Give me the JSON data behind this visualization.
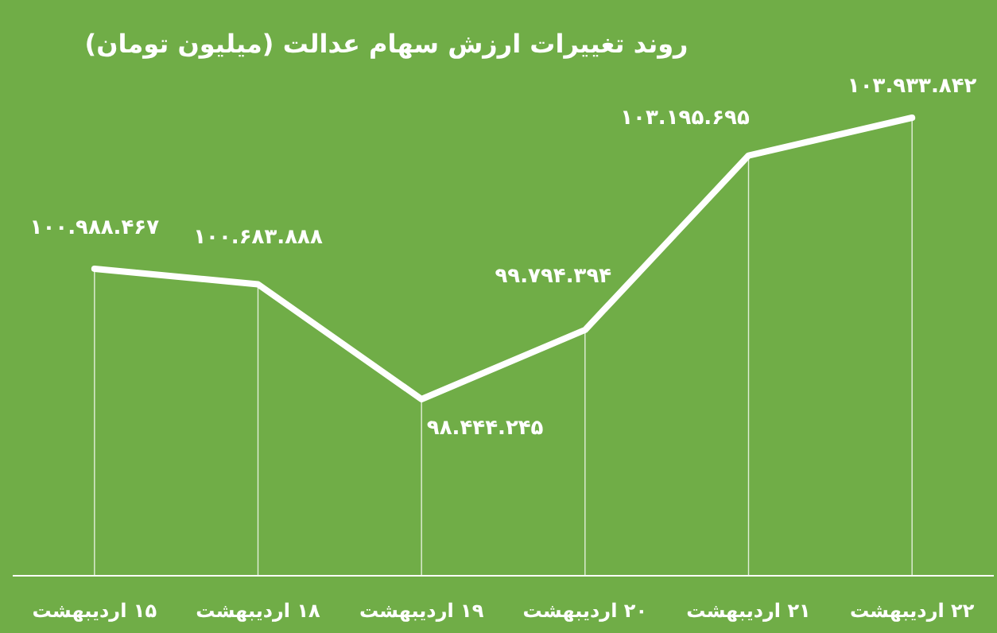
{
  "chart_data": {
    "type": "line",
    "title": "روند تغییرات ارزش سهام عدالت (میلیون تومان)",
    "categories": [
      "۱۵ اردیبهشت",
      "۱۸ اردیبهشت",
      "۱۹ اردیبهشت",
      "۲۰ اردیبهشت",
      "۲۱ اردیبهشت",
      "۲۲ اردیبهشت"
    ],
    "series": [
      {
        "color": "#ffffff",
        "values": [
          100988467,
          100683888,
          98444245,
          99794394,
          103195695,
          103933842
        ],
        "value_labels": [
          "۱۰۰.۹۸۸.۴۶۷",
          "۱۰۰.۶۸۳.۸۸۸",
          "۹۸.۴۴۴.۲۴۵",
          "۹۹.۷۹۴.۳۹۴",
          "۱۰۳.۱۹۵.۶۹۵",
          "۱۰۳.۹۳۳.۸۴۲"
        ]
      }
    ],
    "grid": "x",
    "marker": "none",
    "line_style": "solid"
  }
}
